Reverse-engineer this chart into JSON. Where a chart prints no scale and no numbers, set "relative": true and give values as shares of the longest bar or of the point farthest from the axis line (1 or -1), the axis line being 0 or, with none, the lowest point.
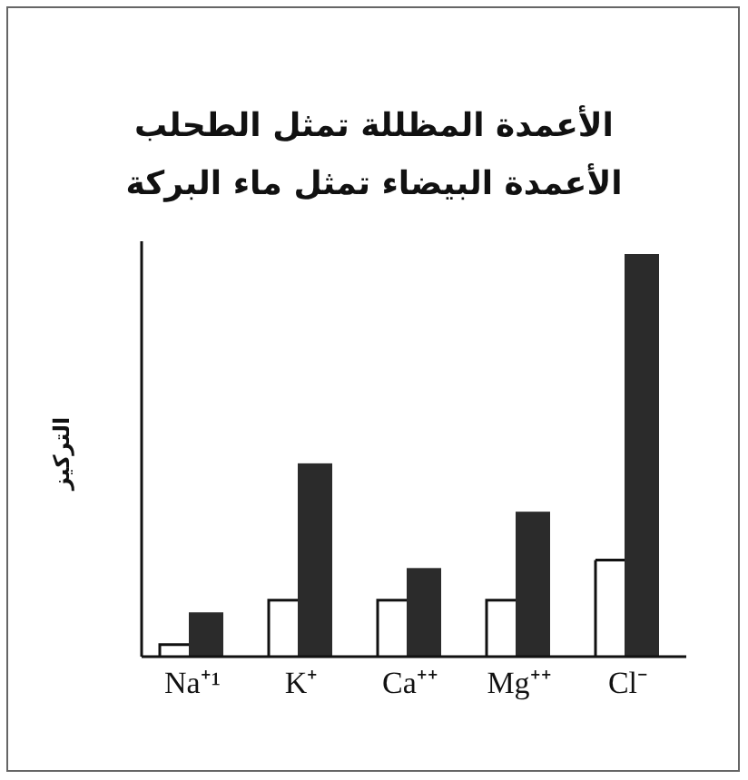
{
  "chart_data": {
    "type": "bar",
    "title": "الأعمدة المظللة تمثل الطحلب",
    "subtitle": "الأعمدة البيضاء تمثل ماء البركة",
    "ylabel": "التركيز",
    "relative": true,
    "categories": [
      "Na⁺¹",
      "K⁺",
      "Ca⁺⁺",
      "Mg⁺⁺",
      "Cl⁻"
    ],
    "series": [
      {
        "color": "#ffffff",
        "values": [
          0.03,
          0.14,
          0.14,
          0.14,
          0.24
        ]
      },
      {
        "color": "#2b2b2b",
        "values": [
          0.11,
          0.48,
          0.22,
          0.36,
          1
        ]
      }
    ]
  }
}
